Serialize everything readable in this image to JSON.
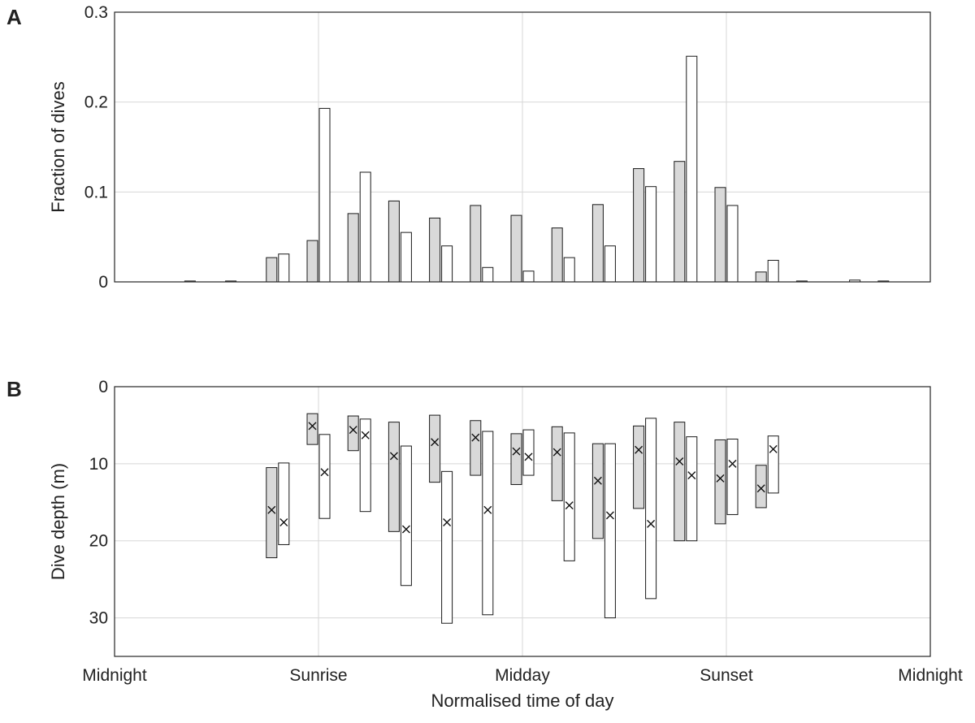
{
  "chart_data": [
    {
      "panel": "A",
      "type": "bar",
      "xlabel": "",
      "ylabel": "Fraction of dives",
      "ylim": [
        0,
        0.3
      ],
      "yticks": [
        0,
        0.1,
        0.2,
        0.3
      ],
      "ytick_labels": [
        "0",
        "0.1",
        "0.2",
        "0.3"
      ],
      "grid": true,
      "bins": [
        1,
        2,
        3,
        4,
        5,
        6,
        7,
        8,
        9,
        10,
        11,
        12,
        13,
        14,
        15,
        16,
        17,
        18,
        19
      ],
      "series": [
        {
          "fill": "#d9d9d9",
          "values": [
            0,
            0.001,
            0.001,
            0.027,
            0.046,
            0.076,
            0.09,
            0.071,
            0.085,
            0.074,
            0.06,
            0.086,
            0.126,
            0.134,
            0.105,
            0.011,
            0.001,
            0,
            0.001
          ]
        },
        {
          "fill": "#ffffff",
          "values": [
            0,
            0,
            0,
            0.031,
            0.193,
            0.122,
            0.055,
            0.04,
            0.016,
            0.012,
            0.027,
            0.04,
            0.106,
            0.251,
            0.085,
            0.024,
            0,
            0.002,
            0
          ]
        }
      ]
    },
    {
      "panel": "B",
      "type": "range-bar",
      "xlabel": "Normalised time of day",
      "ylabel": "Dive depth (m)",
      "ylim": [
        0,
        35
      ],
      "y_reversed": true,
      "yticks": [
        0,
        10,
        20,
        30
      ],
      "ytick_labels": [
        "0",
        "10",
        "20",
        "30"
      ],
      "grid": true,
      "xlim": [
        0,
        1
      ],
      "xticks": [
        0,
        0.25,
        0.5,
        0.75,
        1
      ],
      "xtick_labels": [
        "Midnight",
        "Sunrise",
        "Midday",
        "Sunset",
        "Midnight"
      ],
      "series": [
        {
          "fill": "#d9d9d9",
          "points": [
            {
              "bin": 4,
              "low": 10.5,
              "high": 22.2,
              "mean": 16.0
            },
            {
              "bin": 5,
              "low": 3.5,
              "high": 7.5,
              "mean": 5.1
            },
            {
              "bin": 6,
              "low": 3.8,
              "high": 8.3,
              "mean": 5.6
            },
            {
              "bin": 7,
              "low": 4.6,
              "high": 18.8,
              "mean": 9.0
            },
            {
              "bin": 8,
              "low": 3.7,
              "high": 12.4,
              "mean": 7.2
            },
            {
              "bin": 9,
              "low": 4.4,
              "high": 11.5,
              "mean": 6.6
            },
            {
              "bin": 10,
              "low": 6.1,
              "high": 12.7,
              "mean": 8.4
            },
            {
              "bin": 11,
              "low": 5.2,
              "high": 14.8,
              "mean": 8.5
            },
            {
              "bin": 12,
              "low": 7.4,
              "high": 19.7,
              "mean": 12.2
            },
            {
              "bin": 13,
              "low": 5.1,
              "high": 15.8,
              "mean": 8.2
            },
            {
              "bin": 14,
              "low": 4.6,
              "high": 20.0,
              "mean": 9.7
            },
            {
              "bin": 15,
              "low": 6.9,
              "high": 17.8,
              "mean": 11.9
            },
            {
              "bin": 16,
              "low": 10.2,
              "high": 15.7,
              "mean": 13.2
            }
          ]
        },
        {
          "fill": "#ffffff",
          "points": [
            {
              "bin": 4,
              "low": 9.9,
              "high": 20.5,
              "mean": 17.6
            },
            {
              "bin": 5,
              "low": 6.2,
              "high": 17.1,
              "mean": 11.1
            },
            {
              "bin": 6,
              "low": 4.2,
              "high": 16.2,
              "mean": 6.3
            },
            {
              "bin": 7,
              "low": 7.7,
              "high": 25.8,
              "mean": 18.5
            },
            {
              "bin": 8,
              "low": 11.0,
              "high": 30.7,
              "mean": 17.6
            },
            {
              "bin": 9,
              "low": 5.8,
              "high": 29.6,
              "mean": 16.0
            },
            {
              "bin": 10,
              "low": 5.6,
              "high": 11.5,
              "mean": 9.1
            },
            {
              "bin": 11,
              "low": 6.0,
              "high": 22.6,
              "mean": 15.4
            },
            {
              "bin": 12,
              "low": 7.4,
              "high": 30.0,
              "mean": 16.7
            },
            {
              "bin": 13,
              "low": 4.1,
              "high": 27.5,
              "mean": 17.8
            },
            {
              "bin": 14,
              "low": 6.5,
              "high": 20.0,
              "mean": 11.5
            },
            {
              "bin": 15,
              "low": 6.8,
              "high": 16.6,
              "mean": 10.0
            },
            {
              "bin": 16,
              "low": 6.4,
              "high": 13.8,
              "mean": 8.1
            }
          ]
        }
      ]
    }
  ],
  "panel_labels": [
    "A",
    "B"
  ],
  "mean_marker": "×"
}
